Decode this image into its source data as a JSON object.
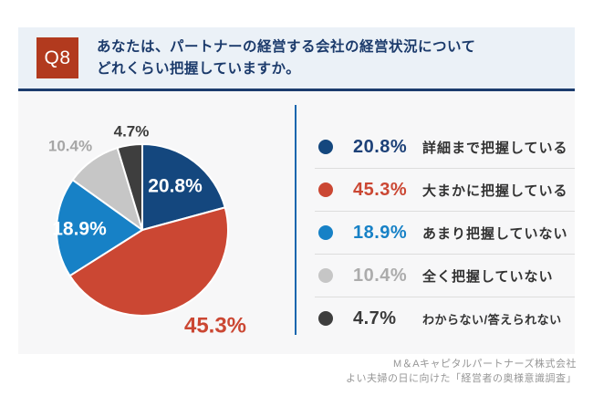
{
  "header": {
    "badge": "Q8",
    "question_line1": "あなたは、パートナーの経営する会社の経営状況について",
    "question_line2": "どれくらい把握していますか。"
  },
  "chart_data": {
    "type": "pie",
    "title": "あなたは、パートナーの経営する会社の経営状況についてどれくらい把握していますか。",
    "start_angle_deg": 0,
    "direction": "clockwise",
    "legend_position": "right",
    "slices": [
      {
        "label": "詳細まで把握している",
        "value": 20.8,
        "display": "20.8%",
        "color": "#14477E",
        "percent_color": "#1D4178"
      },
      {
        "label": "大まかに把握している",
        "value": 45.3,
        "display": "45.3%",
        "color": "#CB4733",
        "percent_color": "#CB4733"
      },
      {
        "label": "あまり把握していない",
        "value": 18.9,
        "display": "18.9%",
        "color": "#1781C6",
        "percent_color": "#1781C6"
      },
      {
        "label": "全く把握していない",
        "value": 10.4,
        "display": "10.4%",
        "color": "#C6C6C6",
        "percent_color": "#ACACAC"
      },
      {
        "label": "わからない/答えられない",
        "value": 4.7,
        "display": "4.7%",
        "color": "#3E3E3E",
        "percent_color": "#3A3A3A"
      }
    ]
  },
  "footer": {
    "line1": "M＆Aキャピタルパートナーズ株式会社",
    "line2": "よい夫婦の日に向けた「経営者の奥様意識調査」"
  },
  "colors": {
    "header_bg": "#EBF1F7",
    "header_border": "#1C3C6E",
    "badge_bg": "#B23A1E",
    "question_text": "#1B3A6B",
    "panel_bg": "#F7F7F8",
    "divider": "#1566AE",
    "legend_separator": "#DDDDDD",
    "footer_text": "#969696"
  }
}
